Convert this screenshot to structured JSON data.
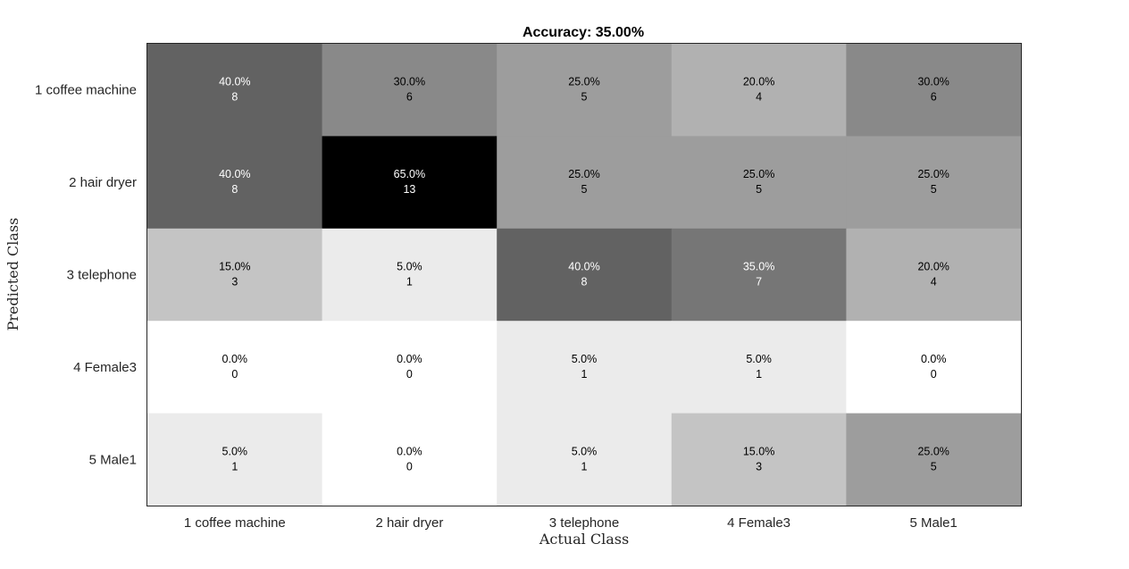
{
  "chart_data": {
    "type": "heatmap",
    "title": "Accuracy: 35.00%",
    "xlabel": "Actual Class",
    "ylabel": "Predicted Class",
    "x_categories": [
      "1 coffee machine",
      "2 hair dryer",
      "3 telephone",
      "4 Female3",
      "5 Male1"
    ],
    "y_categories": [
      "1 coffee machine",
      "2 hair dryer",
      "3 telephone",
      "4 Female3",
      "5 Male1"
    ],
    "colormap": "grayscale (white = 0%, black = 65%)",
    "grid": false,
    "cells": [
      [
        {
          "pct": "40.0%",
          "count": 8
        },
        {
          "pct": "30.0%",
          "count": 6
        },
        {
          "pct": "25.0%",
          "count": 5
        },
        {
          "pct": "20.0%",
          "count": 4
        },
        {
          "pct": "30.0%",
          "count": 6
        }
      ],
      [
        {
          "pct": "40.0%",
          "count": 8
        },
        {
          "pct": "65.0%",
          "count": 13
        },
        {
          "pct": "25.0%",
          "count": 5
        },
        {
          "pct": "25.0%",
          "count": 5
        },
        {
          "pct": "25.0%",
          "count": 5
        }
      ],
      [
        {
          "pct": "15.0%",
          "count": 3
        },
        {
          "pct": "5.0%",
          "count": 1
        },
        {
          "pct": "40.0%",
          "count": 8
        },
        {
          "pct": "35.0%",
          "count": 7
        },
        {
          "pct": "20.0%",
          "count": 4
        }
      ],
      [
        {
          "pct": "0.0%",
          "count": 0
        },
        {
          "pct": "0.0%",
          "count": 0
        },
        {
          "pct": "5.0%",
          "count": 1
        },
        {
          "pct": "5.0%",
          "count": 1
        },
        {
          "pct": "0.0%",
          "count": 0
        }
      ],
      [
        {
          "pct": "5.0%",
          "count": 1
        },
        {
          "pct": "0.0%",
          "count": 0
        },
        {
          "pct": "5.0%",
          "count": 1
        },
        {
          "pct": "15.0%",
          "count": 3
        },
        {
          "pct": "25.0%",
          "count": 5
        }
      ]
    ]
  }
}
